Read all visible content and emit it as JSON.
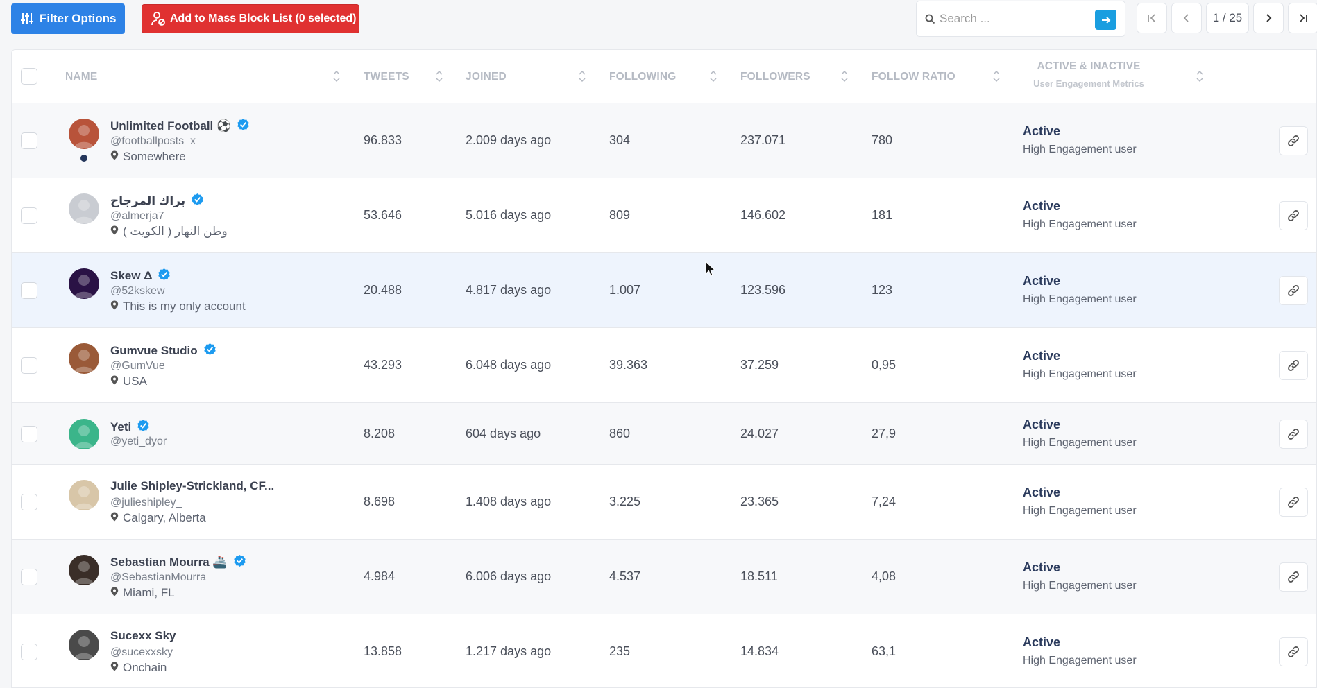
{
  "toolbar": {
    "filter_label": "Filter Options",
    "block_label": "Add to Mass Block List (0 selected)",
    "search_placeholder": "Search ...",
    "page_indicator": "1 / 25"
  },
  "columns": {
    "name": "NAME",
    "tweets": "TWEETS",
    "joined": "JOINED",
    "following": "FOLLOWING",
    "followers": "FOLLOWERS",
    "ratio": "FOLLOW RATIO",
    "active": "ACTIVE & INACTIVE",
    "active_sub": "User Engagement Metrics"
  },
  "rows": [
    {
      "name": "Unlimited Football ⚽",
      "verified": true,
      "handle": "@footballposts_x",
      "location": "Somewhere",
      "tweets": "96.833",
      "joined": "2.009 days ago",
      "following": "304",
      "followers": "237.071",
      "ratio": "780",
      "status": "Active",
      "engagement": "High Engagement user",
      "avatar_color": "#b8533a"
    },
    {
      "name": "براك المرجاح",
      "verified": true,
      "handle": "@almerja7",
      "location": "وطن النهار ( الكويت )",
      "tweets": "53.646",
      "joined": "5.016 days ago",
      "following": "809",
      "followers": "146.602",
      "ratio": "181",
      "status": "Active",
      "engagement": "High Engagement user",
      "avatar_color": "#c9ccd2"
    },
    {
      "name": "Skew Δ",
      "verified": true,
      "handle": "@52kskew",
      "location": "This is my only account",
      "tweets": "20.488",
      "joined": "4.817 days ago",
      "following": "1.007",
      "followers": "123.596",
      "ratio": "123",
      "status": "Active",
      "engagement": "High Engagement user",
      "avatar_color": "#2a1245"
    },
    {
      "name": "Gumvue Studio",
      "verified": true,
      "handle": "@GumVue",
      "location": "USA",
      "tweets": "43.293",
      "joined": "6.048 days ago",
      "following": "39.363",
      "followers": "37.259",
      "ratio": "0,95",
      "status": "Active",
      "engagement": "High Engagement user",
      "avatar_color": "#9a5a38"
    },
    {
      "name": "Yeti",
      "verified": true,
      "handle": "@yeti_dyor",
      "location": "",
      "tweets": "8.208",
      "joined": "604 days ago",
      "following": "860",
      "followers": "24.027",
      "ratio": "27,9",
      "status": "Active",
      "engagement": "High Engagement user",
      "avatar_color": "#3bb58a"
    },
    {
      "name": "Julie Shipley-Strickland, CF...",
      "verified": false,
      "handle": "@julieshipley_",
      "location": "Calgary, Alberta",
      "tweets": "8.698",
      "joined": "1.408 days ago",
      "following": "3.225",
      "followers": "23.365",
      "ratio": "7,24",
      "status": "Active",
      "engagement": "High Engagement user",
      "avatar_color": "#d8c6a8"
    },
    {
      "name": "Sebastian Mourra 🚢",
      "verified": true,
      "handle": "@SebastianMourra",
      "location": "Miami, FL",
      "tweets": "4.984",
      "joined": "6.006 days ago",
      "following": "4.537",
      "followers": "18.511",
      "ratio": "4,08",
      "status": "Active",
      "engagement": "High Engagement user",
      "avatar_color": "#3a2e28"
    },
    {
      "name": "Sucexx Sky",
      "verified": false,
      "handle": "@sucexxsky",
      "location": "Onchain",
      "tweets": "13.858",
      "joined": "1.217 days ago",
      "following": "235",
      "followers": "14.834",
      "ratio": "63,1",
      "status": "Active",
      "engagement": "High Engagement user",
      "avatar_color": "#4a4a4a"
    }
  ]
}
